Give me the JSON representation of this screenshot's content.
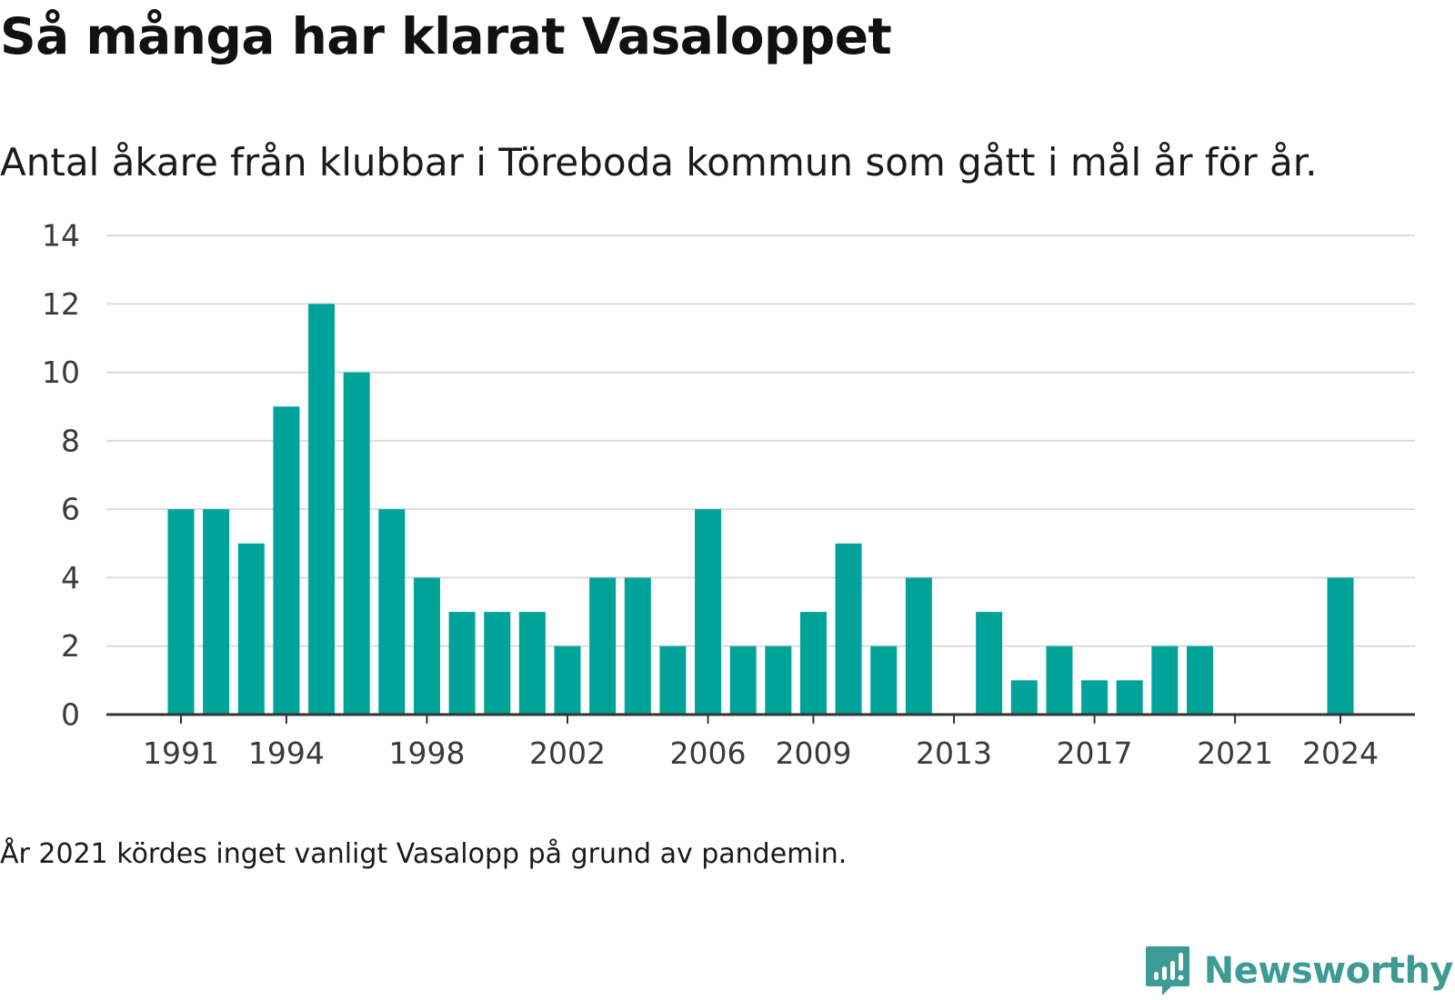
{
  "title": "Så många har klarat Vasaloppet",
  "subtitle": "Antal åkare från klubbar i Töreboda kommun som gått i mål år för år.",
  "footnote": "År 2021 kördes inget vanligt Vasalopp på grund av pandemin.",
  "brand": {
    "name": "Newsworthy",
    "icon": "newsworthy-logo-icon",
    "color": "#3c9b94"
  },
  "colors": {
    "bar": "#00a39a",
    "grid": "#dddddd",
    "axis": "#333333"
  },
  "chart_data": {
    "type": "bar",
    "categories": [
      "1991",
      "1992",
      "1993",
      "1994",
      "1995",
      "1996",
      "1997",
      "1998",
      "1999",
      "2000",
      "2001",
      "2002",
      "2003",
      "2004",
      "2005",
      "2006",
      "2007",
      "2008",
      "2009",
      "2010",
      "2011",
      "2012",
      "2013",
      "2014",
      "2015",
      "2016",
      "2017",
      "2018",
      "2019",
      "2020",
      "2021",
      "2022",
      "2023",
      "2024"
    ],
    "values": [
      6,
      6,
      5,
      9,
      12,
      10,
      6,
      4,
      3,
      3,
      3,
      2,
      4,
      4,
      2,
      6,
      2,
      2,
      3,
      5,
      2,
      4,
      0,
      3,
      1,
      2,
      1,
      1,
      2,
      2,
      0,
      0,
      0,
      4
    ],
    "x_tick_labels": [
      "1991",
      "1994",
      "1998",
      "2002",
      "2006",
      "2009",
      "2013",
      "2017",
      "2021",
      "2024"
    ],
    "y_ticks": [
      0,
      2,
      4,
      6,
      8,
      10,
      12,
      14
    ],
    "ylim": [
      0,
      14
    ],
    "grid": true,
    "title": "Så många har klarat Vasaloppet",
    "xlabel": "",
    "ylabel": ""
  }
}
